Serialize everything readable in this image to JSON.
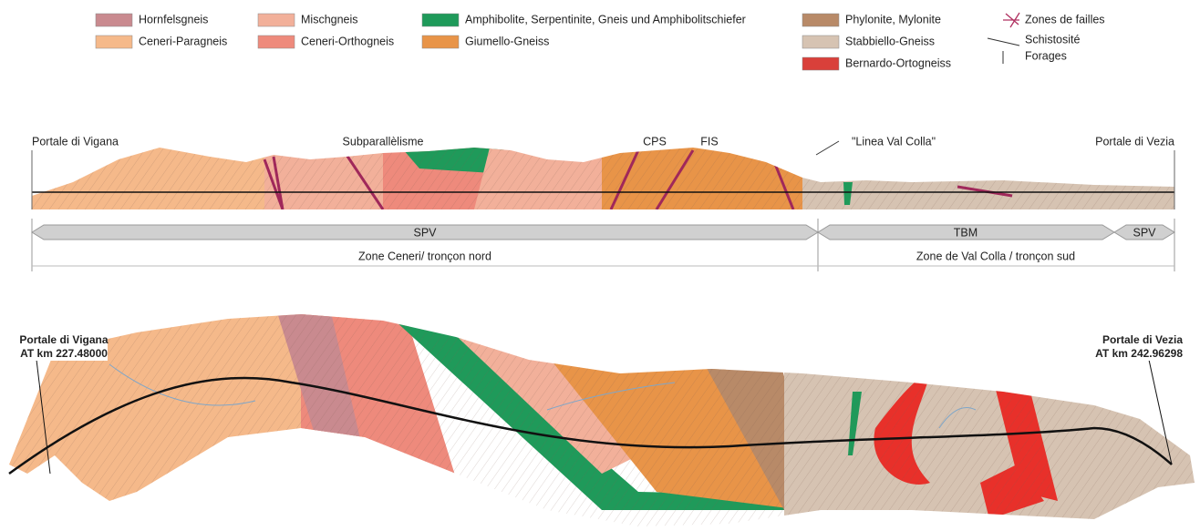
{
  "legend": {
    "units": [
      {
        "label": "Hornfelsgneis",
        "color": "#c98a8f"
      },
      {
        "label": "Ceneri-Paragneis",
        "color": "#f5b98a"
      },
      {
        "label": "Mischgneis",
        "color": "#f2b09a"
      },
      {
        "label": "Ceneri-Orthogneis",
        "color": "#ee8a7c"
      },
      {
        "label": "Amphibolite, Serpentinite, Gneis und Amphibolitschiefer",
        "color": "#1f9a5a"
      },
      {
        "label": "Giumello-Gneiss",
        "color": "#e89448"
      },
      {
        "label": "Phylonite, Mylonite",
        "color": "#b88a68"
      },
      {
        "label": "Stabbiello-Gneiss",
        "color": "#d6c3b2"
      },
      {
        "label": "Bernardo-Ortogneiss",
        "color": "#d9403a"
      }
    ],
    "symbols": [
      "Zones de failles",
      "Schistosité",
      "Forages"
    ]
  },
  "profile": {
    "labels": [
      "Portale di Vigana",
      "Subparallèlisme",
      "CPS",
      "FIS",
      "\"Linea Val Colla\"",
      "Portale di Vezia"
    ],
    "methods": [
      "SPV",
      "TBM",
      "SPV"
    ],
    "zones": [
      "Zone Ceneri/ tronçon nord",
      "Zone de Val Colla / tronçon sud"
    ]
  },
  "map": {
    "west": {
      "name": "Portale di Vigana",
      "km": "AT km 227.48000"
    },
    "east": {
      "name": "Portale di Vezia",
      "km": "AT km 242.96298"
    }
  }
}
